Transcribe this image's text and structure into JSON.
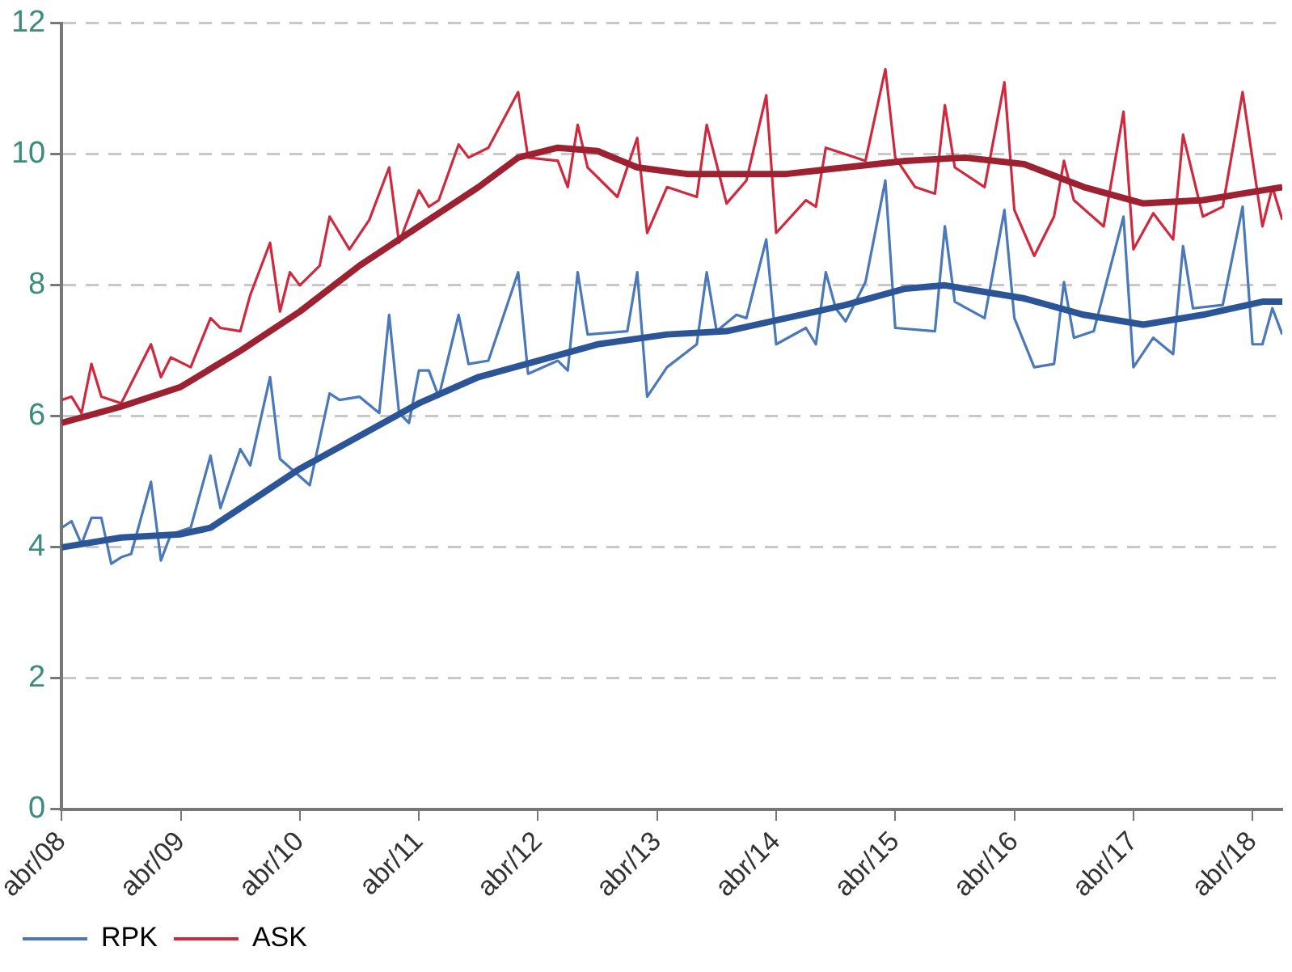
{
  "chart_data": {
    "type": "line",
    "xlim": [
      "2008-04",
      "2018-07"
    ],
    "ylim": [
      0,
      12
    ],
    "yticks": [
      0,
      2,
      4,
      6,
      8,
      10,
      12
    ],
    "xticks": [
      {
        "value": "2008-04",
        "label": "abr/08"
      },
      {
        "value": "2009-04",
        "label": "abr/09"
      },
      {
        "value": "2010-04",
        "label": "abr/10"
      },
      {
        "value": "2011-04",
        "label": "abr/11"
      },
      {
        "value": "2012-04",
        "label": "abr/12"
      },
      {
        "value": "2013-04",
        "label": "abr/13"
      },
      {
        "value": "2014-04",
        "label": "abr/14"
      },
      {
        "value": "2015-04",
        "label": "abr/15"
      },
      {
        "value": "2016-04",
        "label": "abr/16"
      },
      {
        "value": "2017-04",
        "label": "abr/17"
      },
      {
        "value": "2018-04",
        "label": "abr/18"
      }
    ],
    "grid": "y",
    "legend": "bottom",
    "marker": "none",
    "line_style": "solid",
    "series": [
      {
        "name": "RPK",
        "color": "#4a78b8",
        "x": [
          "2008-04",
          "2008-05",
          "2008-06",
          "2008-07",
          "2008-08",
          "2008-09",
          "2008-10",
          "2008-11",
          "2009-01",
          "2009-02",
          "2009-03",
          "2009-05",
          "2009-07",
          "2009-08",
          "2009-10",
          "2009-11",
          "2010-01",
          "2010-02",
          "2010-05",
          "2010-07",
          "2010-08",
          "2010-10",
          "2010-12",
          "2011-01",
          "2011-02",
          "2011-03",
          "2011-04",
          "2011-05",
          "2011-06",
          "2011-08",
          "2011-09",
          "2011-11",
          "2012-02",
          "2012-03",
          "2012-06",
          "2012-07",
          "2012-08",
          "2012-09",
          "2013-01",
          "2013-02",
          "2013-03",
          "2013-05",
          "2013-08",
          "2013-09",
          "2013-10",
          "2013-12",
          "2014-01",
          "2014-03",
          "2014-04",
          "2014-07",
          "2014-08",
          "2014-09",
          "2014-10",
          "2014-11",
          "2015-01",
          "2015-03",
          "2015-04",
          "2015-08",
          "2015-09",
          "2015-10",
          "2016-01",
          "2016-03",
          "2016-04",
          "2016-06",
          "2016-08",
          "2016-09",
          "2016-10",
          "2016-12",
          "2017-03",
          "2017-04",
          "2017-06",
          "2017-08",
          "2017-09",
          "2017-10",
          "2018-01",
          "2018-03",
          "2018-04",
          "2018-05",
          "2018-06",
          "2018-07"
        ],
        "values": [
          4.3,
          4.4,
          4.05,
          4.45,
          4.45,
          3.75,
          3.85,
          3.9,
          5.0,
          3.8,
          4.2,
          4.3,
          5.4,
          4.6,
          5.5,
          5.25,
          6.6,
          5.35,
          4.95,
          6.35,
          6.25,
          6.3,
          6.05,
          7.55,
          6.05,
          5.9,
          6.7,
          6.7,
          6.3,
          7.55,
          6.8,
          6.85,
          8.2,
          6.65,
          6.85,
          6.7,
          8.2,
          7.25,
          7.3,
          8.2,
          6.3,
          6.75,
          7.1,
          8.2,
          7.3,
          7.55,
          7.5,
          8.7,
          7.1,
          7.35,
          7.1,
          8.2,
          7.65,
          7.45,
          8.05,
          9.6,
          7.35,
          7.3,
          8.9,
          7.75,
          7.5,
          9.15,
          7.5,
          6.75,
          6.8,
          8.05,
          7.2,
          7.3,
          9.05,
          6.75,
          7.2,
          6.95,
          8.6,
          7.65,
          7.7,
          9.2,
          7.1,
          7.1,
          7.65,
          7.25
        ]
      },
      {
        "name": "ASK",
        "color": "#d0283e",
        "x": [
          "2008-04",
          "2008-05",
          "2008-06",
          "2008-07",
          "2008-08",
          "2008-10",
          "2008-12",
          "2009-01",
          "2009-02",
          "2009-03",
          "2009-05",
          "2009-07",
          "2009-08",
          "2009-10",
          "2009-11",
          "2010-01",
          "2010-02",
          "2010-03",
          "2010-04",
          "2010-06",
          "2010-07",
          "2010-09",
          "2010-11",
          "2011-01",
          "2011-02",
          "2011-04",
          "2011-05",
          "2011-06",
          "2011-08",
          "2011-09",
          "2011-11",
          "2012-02",
          "2012-03",
          "2012-06",
          "2012-07",
          "2012-08",
          "2012-09",
          "2012-12",
          "2013-02",
          "2013-03",
          "2013-05",
          "2013-08",
          "2013-09",
          "2013-11",
          "2014-01",
          "2014-03",
          "2014-04",
          "2014-07",
          "2014-08",
          "2014-09",
          "2014-11",
          "2015-01",
          "2015-03",
          "2015-04",
          "2015-06",
          "2015-08",
          "2015-09",
          "2015-10",
          "2016-01",
          "2016-03",
          "2016-04",
          "2016-06",
          "2016-08",
          "2016-09",
          "2016-10",
          "2017-01",
          "2017-03",
          "2017-04",
          "2017-06",
          "2017-08",
          "2017-09",
          "2017-11",
          "2018-01",
          "2018-03",
          "2018-05",
          "2018-06",
          "2018-07"
        ],
        "values": [
          6.25,
          6.3,
          6.05,
          6.8,
          6.3,
          6.2,
          6.8,
          7.1,
          6.6,
          6.9,
          6.75,
          7.5,
          7.35,
          7.3,
          7.85,
          8.65,
          7.6,
          8.2,
          8.0,
          8.3,
          9.05,
          8.55,
          9.0,
          9.8,
          8.65,
          9.45,
          9.2,
          9.3,
          10.15,
          9.95,
          10.1,
          10.95,
          9.95,
          9.9,
          9.5,
          10.45,
          9.8,
          9.35,
          10.25,
          8.8,
          9.5,
          9.35,
          10.45,
          9.25,
          9.6,
          10.9,
          8.8,
          9.3,
          9.2,
          10.1,
          10.0,
          9.9,
          11.3,
          9.95,
          9.5,
          9.4,
          10.75,
          9.8,
          9.5,
          11.1,
          9.15,
          8.45,
          9.05,
          9.9,
          9.3,
          8.9,
          10.65,
          8.55,
          9.1,
          8.7,
          10.3,
          9.05,
          9.2,
          10.95,
          8.9,
          9.5,
          9.0
        ]
      },
      {
        "color": "#2c5597",
        "x": [
          "2008-04",
          "2008-10",
          "2009-04",
          "2009-07",
          "2009-10",
          "2010-04",
          "2010-10",
          "2011-04",
          "2011-10",
          "2012-04",
          "2012-10",
          "2013-05",
          "2013-11",
          "2014-05",
          "2014-11",
          "2015-05",
          "2015-09",
          "2016-01",
          "2016-05",
          "2016-11",
          "2017-05",
          "2017-11",
          "2018-05",
          "2018-07"
        ],
        "values": [
          4.0,
          4.15,
          4.2,
          4.3,
          4.6,
          5.2,
          5.7,
          6.2,
          6.6,
          6.85,
          7.1,
          7.25,
          7.3,
          7.5,
          7.7,
          7.95,
          8.0,
          7.9,
          7.8,
          7.55,
          7.4,
          7.55,
          7.75,
          7.75
        ]
      },
      {
        "color": "#9c2232",
        "x": [
          "2008-04",
          "2008-10",
          "2009-04",
          "2009-10",
          "2010-04",
          "2010-10",
          "2011-04",
          "2011-10",
          "2012-02",
          "2012-06",
          "2012-10",
          "2013-02",
          "2013-07",
          "2013-11",
          "2014-05",
          "2014-11",
          "2015-05",
          "2015-11",
          "2016-05",
          "2016-11",
          "2017-05",
          "2017-11",
          "2018-05",
          "2018-07"
        ],
        "values": [
          5.9,
          6.15,
          6.45,
          7.0,
          7.6,
          8.3,
          8.9,
          9.5,
          9.95,
          10.1,
          10.05,
          9.8,
          9.7,
          9.7,
          9.7,
          9.8,
          9.9,
          9.95,
          9.85,
          9.5,
          9.25,
          9.3,
          9.45,
          9.5
        ]
      }
    ]
  }
}
